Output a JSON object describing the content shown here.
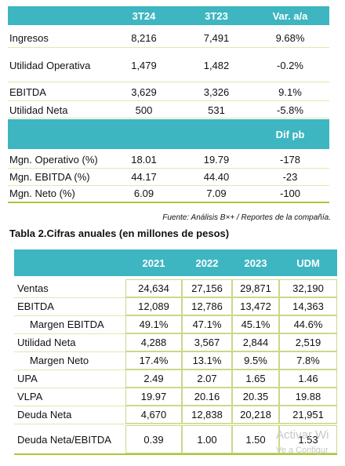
{
  "table1": {
    "header": [
      "3T24",
      "3T23",
      "Var. a/a"
    ],
    "rows": [
      [
        "Ingresos",
        "8,216",
        "7,491",
        "9.68%"
      ],
      [
        "Utilidad Operativa",
        "1,479",
        "1,482",
        "-0.2%"
      ],
      [
        "EBITDA",
        "3,629",
        "3,326",
        "9.1%"
      ],
      [
        "Utilidad Neta",
        "500",
        "531",
        "-5.8%"
      ]
    ],
    "subheader": "Dif pb",
    "rows2": [
      [
        "Mgn. Operativo (%)",
        "18.01",
        "19.79",
        "-178"
      ],
      [
        "Mgn. EBITDA (%)",
        "44.17",
        "44.40",
        "-23"
      ],
      [
        "Mgn. Neto (%)",
        "6.09",
        "7.09",
        "-100"
      ]
    ]
  },
  "source": "Fuente: Análisis B×+ / Reportes de la compañía.",
  "table2": {
    "title": "Tabla 2.Cifras anuales (en millones de pesos)",
    "header": [
      "2021",
      "2022",
      "2023",
      "UDM"
    ],
    "rows": [
      [
        "Ventas",
        "24,634",
        "27,156",
        "29,871",
        "32,190"
      ],
      [
        "EBITDA",
        "12,089",
        "12,786",
        "13,472",
        "14,363"
      ],
      [
        "Margen EBITDA",
        "49.1%",
        "47.1%",
        "45.1%",
        "44.6%"
      ],
      [
        "Utilidad Neta",
        "4,288",
        "3,567",
        "2,844",
        "2,519"
      ],
      [
        "Margen Neto",
        "17.4%",
        "13.1%",
        "9.5%",
        "7.8%"
      ],
      [
        "UPA",
        "2.49",
        "2.07",
        "1.65",
        "1.46"
      ],
      [
        "VLPA",
        "19.97",
        "20.16",
        "20.35",
        "19.88"
      ],
      [
        "Deuda Neta",
        "4,670",
        "12,838",
        "20,218",
        "21,951"
      ],
      [
        "Deuda Neta/EBITDA",
        "0.39",
        "1.00",
        "1.50",
        "1.53"
      ]
    ]
  },
  "watermark": [
    "Activar Wi",
    "Ve a Configur"
  ]
}
